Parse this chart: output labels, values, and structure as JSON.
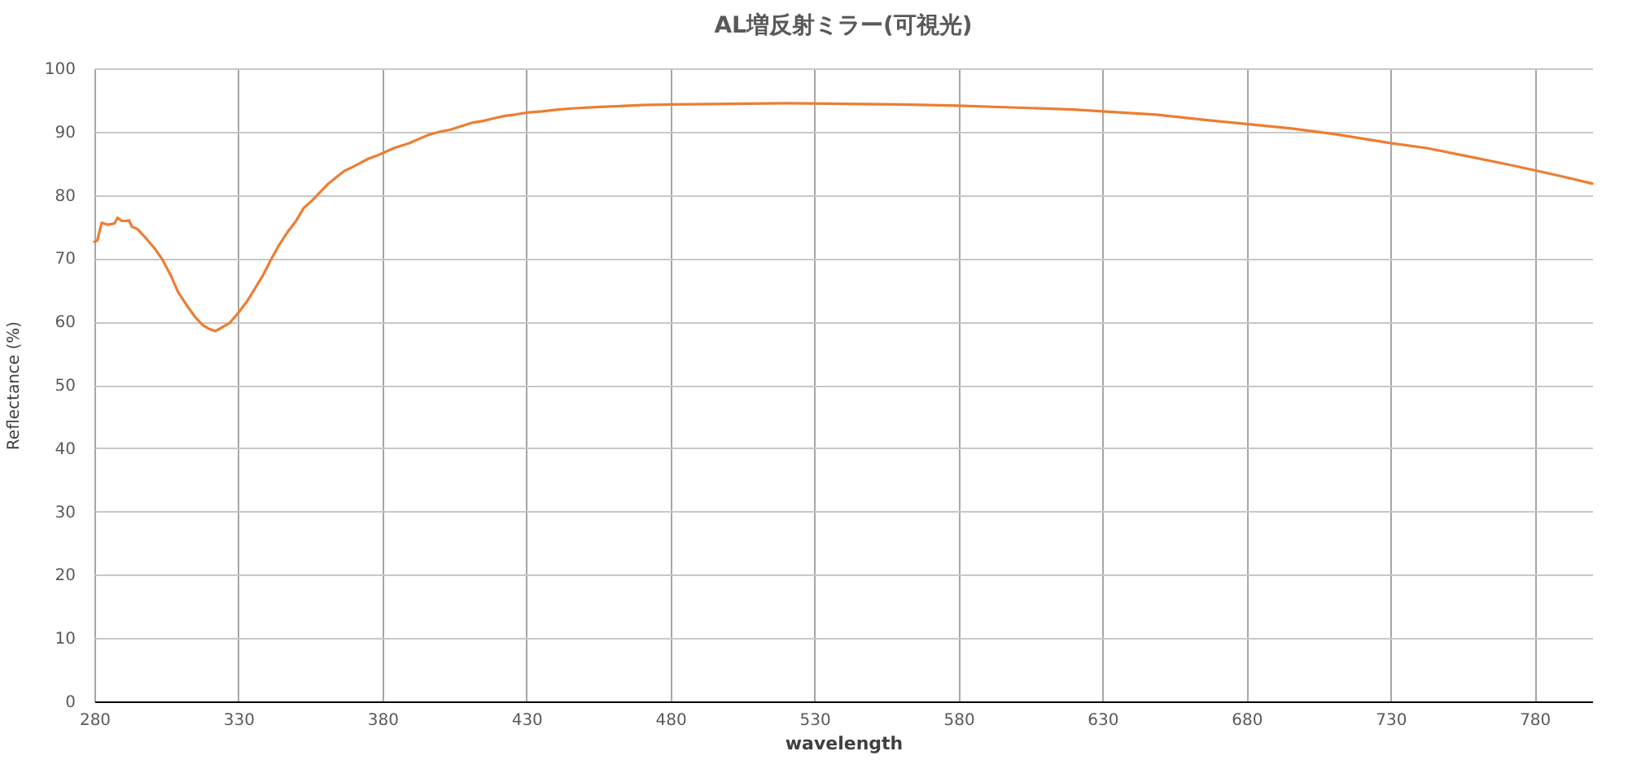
{
  "chart_data": {
    "type": "line",
    "title": "AL増反射ミラー(可視光)",
    "xlabel": "wavelength",
    "ylabel": "Reflectance (%)",
    "xlim": [
      280,
      800
    ],
    "xticks": [
      280,
      330,
      380,
      430,
      480,
      530,
      580,
      630,
      680,
      730,
      780
    ],
    "ylim": [
      0,
      100
    ],
    "yticks": [
      0,
      10,
      20,
      30,
      40,
      50,
      60,
      70,
      80,
      90,
      100
    ],
    "grid": true,
    "marker": "none",
    "line_style": "solid",
    "x": [
      280,
      281,
      282.5,
      284.7,
      287,
      288,
      289.5,
      291,
      292,
      293,
      295,
      298,
      301,
      303.6,
      306.4,
      309,
      312,
      315,
      317.7,
      320,
      322,
      324,
      327,
      330,
      333,
      335.7,
      338.5,
      341.3,
      344,
      347,
      350,
      352.6,
      355.5,
      358.3,
      361,
      364,
      366.8,
      369.6,
      372.5,
      375,
      378,
      381,
      384,
      386.6,
      389.5,
      392.4,
      396,
      400,
      403.5,
      407,
      411,
      415,
      418.5,
      422.6,
      426,
      430,
      435.5,
      441,
      447,
      455.5,
      470,
      480,
      500,
      520,
      540,
      560,
      580,
      600,
      620,
      630,
      648.5,
      667,
      680,
      695.6,
      710.7,
      730,
      742.6,
      755.8,
      770.9,
      780,
      789.8,
      800
    ],
    "series": [
      {
        "color": "#ed7d31",
        "values": [
          72.6,
          72.8,
          75.6,
          75.3,
          75.5,
          76.4,
          75.9,
          75.9,
          76.0,
          75.0,
          74.6,
          73.1,
          71.5,
          69.8,
          67.4,
          64.7,
          62.6,
          60.7,
          59.4,
          58.8,
          58.5,
          59.0,
          59.8,
          61.4,
          63.2,
          65.2,
          67.3,
          69.8,
          72.0,
          74.1,
          75.9,
          77.9,
          79.1,
          80.4,
          81.7,
          82.8,
          83.8,
          84.4,
          85.1,
          85.7,
          86.2,
          86.8,
          87.4,
          87.8,
          88.2,
          88.8,
          89.5,
          90.0,
          90.3,
          90.8,
          91.4,
          91.7,
          92.1,
          92.5,
          92.7,
          93.0,
          93.2,
          93.5,
          93.7,
          93.9,
          94.2,
          94.3,
          94.4,
          94.5,
          94.4,
          94.3,
          94.1,
          93.8,
          93.5,
          93.2,
          92.7,
          91.8,
          91.2,
          90.5,
          89.6,
          88.2,
          87.4,
          86.2,
          84.8,
          83.9,
          82.9,
          81.8
        ]
      }
    ]
  }
}
